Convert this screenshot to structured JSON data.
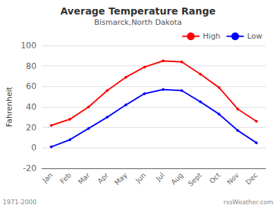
{
  "chart_data": {
    "type": "line",
    "title": "Average Temperature Range",
    "subtitle": "Bismarck,North Dakota",
    "y_label": "Fahrenheit",
    "categories": [
      "Jan",
      "Feb",
      "Mar",
      "Apr",
      "May",
      "Jun",
      "Jul",
      "Aug",
      "Sept",
      "Oct",
      "Nov",
      "Dec"
    ],
    "series": [
      {
        "name": "High",
        "color": "#ff0000",
        "values": [
          22,
          28,
          40,
          56,
          69,
          79,
          85,
          84,
          72,
          59,
          38,
          26
        ]
      },
      {
        "name": "Low",
        "color": "#0000ff",
        "values": [
          1,
          8,
          19,
          30,
          42,
          53,
          57,
          56,
          45,
          33,
          17,
          5
        ]
      }
    ],
    "ylim": [
      -20,
      100
    ],
    "yticks": [
      -20,
      0,
      20,
      40,
      60,
      80,
      100
    ],
    "grid": true,
    "legend": "upper right",
    "annotations": [
      "1971-2000",
      "rssWeather.com"
    ]
  }
}
